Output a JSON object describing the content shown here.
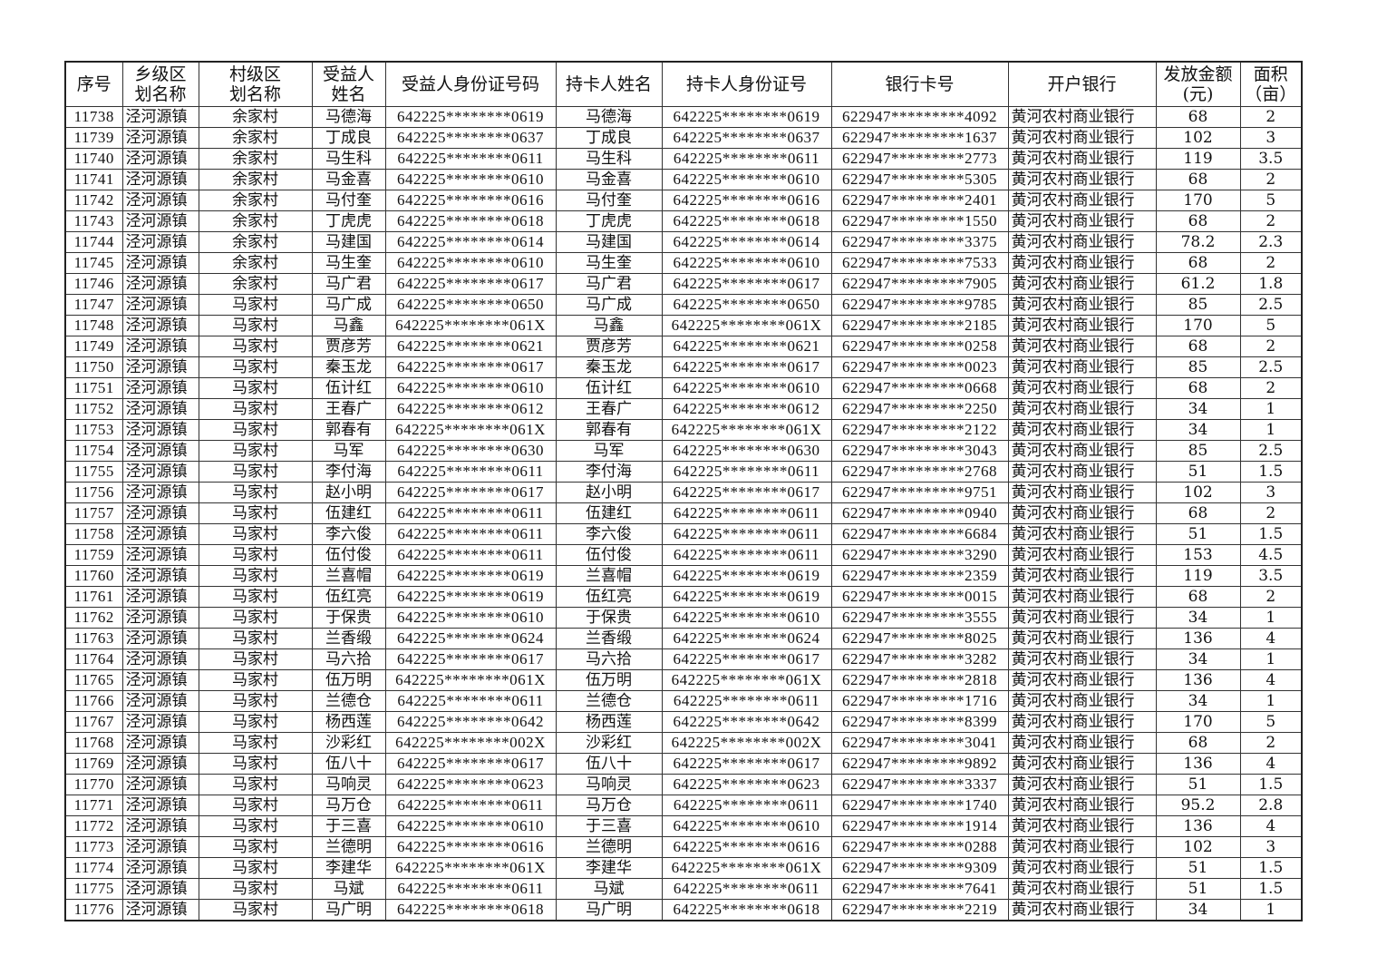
{
  "headers": [
    "序号",
    "乡级区\n划名称",
    "村级区\n划名称",
    "受益人\n姓名",
    "受益人身份证号码",
    "持卡人姓名",
    "持卡人身份证号",
    "银行卡号",
    "开户银行",
    "发放金额\n(元)",
    "面积\n（亩）"
  ],
  "rows": [
    [
      "11738",
      "泾河源镇",
      "余家村",
      "马德海",
      "642225********0619",
      "马德海",
      "642225********0619",
      "622947*********4092",
      "黄河农村商业银行",
      "68",
      "2"
    ],
    [
      "11739",
      "泾河源镇",
      "余家村",
      "丁成良",
      "642225********0637",
      "丁成良",
      "642225********0637",
      "622947*********1637",
      "黄河农村商业银行",
      "102",
      "3"
    ],
    [
      "11740",
      "泾河源镇",
      "余家村",
      "马生科",
      "642225********0611",
      "马生科",
      "642225********0611",
      "622947*********2773",
      "黄河农村商业银行",
      "119",
      "3.5"
    ],
    [
      "11741",
      "泾河源镇",
      "余家村",
      "马金喜",
      "642225********0610",
      "马金喜",
      "642225********0610",
      "622947*********5305",
      "黄河农村商业银行",
      "68",
      "2"
    ],
    [
      "11742",
      "泾河源镇",
      "余家村",
      "马付奎",
      "642225********0616",
      "马付奎",
      "642225********0616",
      "622947*********2401",
      "黄河农村商业银行",
      "170",
      "5"
    ],
    [
      "11743",
      "泾河源镇",
      "余家村",
      "丁虎虎",
      "642225********0618",
      "丁虎虎",
      "642225********0618",
      "622947*********1550",
      "黄河农村商业银行",
      "68",
      "2"
    ],
    [
      "11744",
      "泾河源镇",
      "余家村",
      "马建国",
      "642225********0614",
      "马建国",
      "642225********0614",
      "622947*********3375",
      "黄河农村商业银行",
      "78.2",
      "2.3"
    ],
    [
      "11745",
      "泾河源镇",
      "余家村",
      "马生奎",
      "642225********0610",
      "马生奎",
      "642225********0610",
      "622947*********7533",
      "黄河农村商业银行",
      "68",
      "2"
    ],
    [
      "11746",
      "泾河源镇",
      "余家村",
      "马广君",
      "642225********0617",
      "马广君",
      "642225********0617",
      "622947*********7905",
      "黄河农村商业银行",
      "61.2",
      "1.8"
    ],
    [
      "11747",
      "泾河源镇",
      "马家村",
      "马广成",
      "642225********0650",
      "马广成",
      "642225********0650",
      "622947*********9785",
      "黄河农村商业银行",
      "85",
      "2.5"
    ],
    [
      "11748",
      "泾河源镇",
      "马家村",
      "马鑫",
      "642225********061X",
      "马鑫",
      "642225********061X",
      "622947*********2185",
      "黄河农村商业银行",
      "170",
      "5"
    ],
    [
      "11749",
      "泾河源镇",
      "马家村",
      "贾彦芳",
      "642225********0621",
      "贾彦芳",
      "642225********0621",
      "622947*********0258",
      "黄河农村商业银行",
      "68",
      "2"
    ],
    [
      "11750",
      "泾河源镇",
      "马家村",
      "秦玉龙",
      "642225********0617",
      "秦玉龙",
      "642225********0617",
      "622947*********0023",
      "黄河农村商业银行",
      "85",
      "2.5"
    ],
    [
      "11751",
      "泾河源镇",
      "马家村",
      "伍计红",
      "642225********0610",
      "伍计红",
      "642225********0610",
      "622947*********0668",
      "黄河农村商业银行",
      "68",
      "2"
    ],
    [
      "11752",
      "泾河源镇",
      "马家村",
      "王春广",
      "642225********0612",
      "王春广",
      "642225********0612",
      "622947*********2250",
      "黄河农村商业银行",
      "34",
      "1"
    ],
    [
      "11753",
      "泾河源镇",
      "马家村",
      "郭春有",
      "642225********061X",
      "郭春有",
      "642225********061X",
      "622947*********2122",
      "黄河农村商业银行",
      "34",
      "1"
    ],
    [
      "11754",
      "泾河源镇",
      "马家村",
      "马军",
      "642225********0630",
      "马军",
      "642225********0630",
      "622947*********3043",
      "黄河农村商业银行",
      "85",
      "2.5"
    ],
    [
      "11755",
      "泾河源镇",
      "马家村",
      "李付海",
      "642225********0611",
      "李付海",
      "642225********0611",
      "622947*********2768",
      "黄河农村商业银行",
      "51",
      "1.5"
    ],
    [
      "11756",
      "泾河源镇",
      "马家村",
      "赵小明",
      "642225********0617",
      "赵小明",
      "642225********0617",
      "622947*********9751",
      "黄河农村商业银行",
      "102",
      "3"
    ],
    [
      "11757",
      "泾河源镇",
      "马家村",
      "伍建红",
      "642225********0611",
      "伍建红",
      "642225********0611",
      "622947*********0940",
      "黄河农村商业银行",
      "68",
      "2"
    ],
    [
      "11758",
      "泾河源镇",
      "马家村",
      "李六俊",
      "642225********0611",
      "李六俊",
      "642225********0611",
      "622947*********6684",
      "黄河农村商业银行",
      "51",
      "1.5"
    ],
    [
      "11759",
      "泾河源镇",
      "马家村",
      "伍付俊",
      "642225********0611",
      "伍付俊",
      "642225********0611",
      "622947*********3290",
      "黄河农村商业银行",
      "153",
      "4.5"
    ],
    [
      "11760",
      "泾河源镇",
      "马家村",
      "兰喜帽",
      "642225********0619",
      "兰喜帽",
      "642225********0619",
      "622947*********2359",
      "黄河农村商业银行",
      "119",
      "3.5"
    ],
    [
      "11761",
      "泾河源镇",
      "马家村",
      "伍红亮",
      "642225********0619",
      "伍红亮",
      "642225********0619",
      "622947*********0015",
      "黄河农村商业银行",
      "68",
      "2"
    ],
    [
      "11762",
      "泾河源镇",
      "马家村",
      "于保贵",
      "642225********0610",
      "于保贵",
      "642225********0610",
      "622947*********3555",
      "黄河农村商业银行",
      "34",
      "1"
    ],
    [
      "11763",
      "泾河源镇",
      "马家村",
      "兰香缎",
      "642225********0624",
      "兰香缎",
      "642225********0624",
      "622947*********8025",
      "黄河农村商业银行",
      "136",
      "4"
    ],
    [
      "11764",
      "泾河源镇",
      "马家村",
      "马六拾",
      "642225********0617",
      "马六拾",
      "642225********0617",
      "622947*********3282",
      "黄河农村商业银行",
      "34",
      "1"
    ],
    [
      "11765",
      "泾河源镇",
      "马家村",
      "伍万明",
      "642225********061X",
      "伍万明",
      "642225********061X",
      "622947*********2818",
      "黄河农村商业银行",
      "136",
      "4"
    ],
    [
      "11766",
      "泾河源镇",
      "马家村",
      "兰德仓",
      "642225********0611",
      "兰德仓",
      "642225********0611",
      "622947*********1716",
      "黄河农村商业银行",
      "34",
      "1"
    ],
    [
      "11767",
      "泾河源镇",
      "马家村",
      "杨西莲",
      "642225********0642",
      "杨西莲",
      "642225********0642",
      "622947*********8399",
      "黄河农村商业银行",
      "170",
      "5"
    ],
    [
      "11768",
      "泾河源镇",
      "马家村",
      "沙彩红",
      "642225********002X",
      "沙彩红",
      "642225********002X",
      "622947*********3041",
      "黄河农村商业银行",
      "68",
      "2"
    ],
    [
      "11769",
      "泾河源镇",
      "马家村",
      "伍八十",
      "642225********0617",
      "伍八十",
      "642225********0617",
      "622947*********9892",
      "黄河农村商业银行",
      "136",
      "4"
    ],
    [
      "11770",
      "泾河源镇",
      "马家村",
      "马响灵",
      "642225********0623",
      "马响灵",
      "642225********0623",
      "622947*********3337",
      "黄河农村商业银行",
      "51",
      "1.5"
    ],
    [
      "11771",
      "泾河源镇",
      "马家村",
      "马万仓",
      "642225********0611",
      "马万仓",
      "642225********0611",
      "622947*********1740",
      "黄河农村商业银行",
      "95.2",
      "2.8"
    ],
    [
      "11772",
      "泾河源镇",
      "马家村",
      "于三喜",
      "642225********0610",
      "于三喜",
      "642225********0610",
      "622947*********1914",
      "黄河农村商业银行",
      "136",
      "4"
    ],
    [
      "11773",
      "泾河源镇",
      "马家村",
      "兰德明",
      "642225********0616",
      "兰德明",
      "642225********0616",
      "622947*********0288",
      "黄河农村商业银行",
      "102",
      "3"
    ],
    [
      "11774",
      "泾河源镇",
      "马家村",
      "李建华",
      "642225********061X",
      "李建华",
      "642225********061X",
      "622947*********9309",
      "黄河农村商业银行",
      "51",
      "1.5"
    ],
    [
      "11775",
      "泾河源镇",
      "马家村",
      "马斌",
      "642225********0611",
      "马斌",
      "642225********0611",
      "622947*********7641",
      "黄河农村商业银行",
      "51",
      "1.5"
    ],
    [
      "11776",
      "泾河源镇",
      "马家村",
      "马广明",
      "642225********0618",
      "马广明",
      "642225********0618",
      "622947*********2219",
      "黄河农村商业银行",
      "34",
      "1"
    ]
  ]
}
